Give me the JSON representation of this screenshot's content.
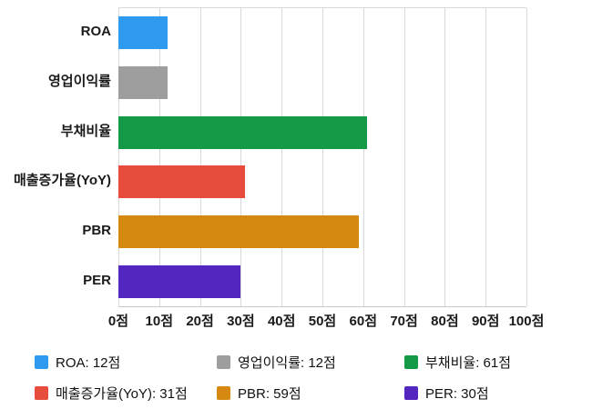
{
  "chart_data": {
    "type": "bar",
    "orientation": "horizontal",
    "title": "",
    "xlabel": "",
    "ylabel": "",
    "unit": "점",
    "categories": [
      "ROA",
      "영업이익률",
      "부채비율",
      "매출증가율(YoY)",
      "PBR",
      "PER"
    ],
    "values": [
      12,
      12,
      61,
      31,
      59,
      30
    ],
    "colors": [
      "#2E9BF0",
      "#9E9E9E",
      "#149A47",
      "#E74C3C",
      "#D68910",
      "#5426C0"
    ],
    "xlim": [
      0,
      100
    ],
    "x_ticks": [
      0,
      10,
      20,
      30,
      40,
      50,
      60,
      70,
      80,
      90,
      100
    ],
    "x_tick_labels": [
      "0점",
      "10점",
      "20점",
      "30점",
      "40점",
      "50점",
      "60점",
      "70점",
      "80점",
      "90점",
      "100점"
    ],
    "grid": true,
    "legend_position": "bottom",
    "legend": [
      {
        "label": "ROA: 12점",
        "color": "#2E9BF0"
      },
      {
        "label": "영업이익률: 12점",
        "color": "#9E9E9E"
      },
      {
        "label": "부채비율: 61점",
        "color": "#149A47"
      },
      {
        "label": "매출증가율(YoY): 31점",
        "color": "#E74C3C"
      },
      {
        "label": "PBR: 59점",
        "color": "#D68910"
      },
      {
        "label": "PER: 30점",
        "color": "#5426C0"
      }
    ]
  }
}
